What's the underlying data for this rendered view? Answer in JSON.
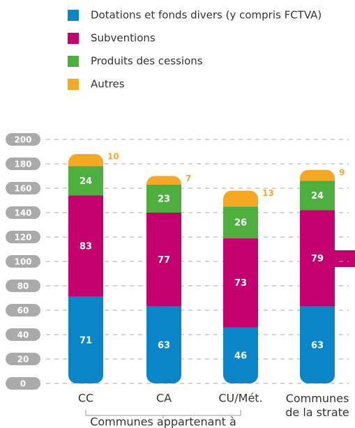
{
  "chart_data": {
    "type": "stacked-bar",
    "categories": [
      "CC",
      "CA",
      "CU/Mét.",
      "Communes de la strate"
    ],
    "group_label": "Communes appartenant à",
    "series": [
      {
        "name": "Dotations et fonds divers (y compris FCTVA)",
        "color": "#0a86c8",
        "values": [
          71,
          63,
          46,
          63
        ]
      },
      {
        "name": "Subventions",
        "color": "#c4006e",
        "values": [
          83,
          77,
          73,
          79
        ]
      },
      {
        "name": "Produits des cessions",
        "color": "#4caf3e",
        "values": [
          24,
          23,
          26,
          24
        ]
      },
      {
        "name": "Autres",
        "color": "#f7a823",
        "values": [
          10,
          7,
          13,
          9
        ]
      }
    ],
    "ylim": [
      0,
      200
    ],
    "yticks": [
      0,
      20,
      40,
      60,
      80,
      100,
      120,
      140,
      160,
      180,
      200
    ],
    "grid": true
  }
}
